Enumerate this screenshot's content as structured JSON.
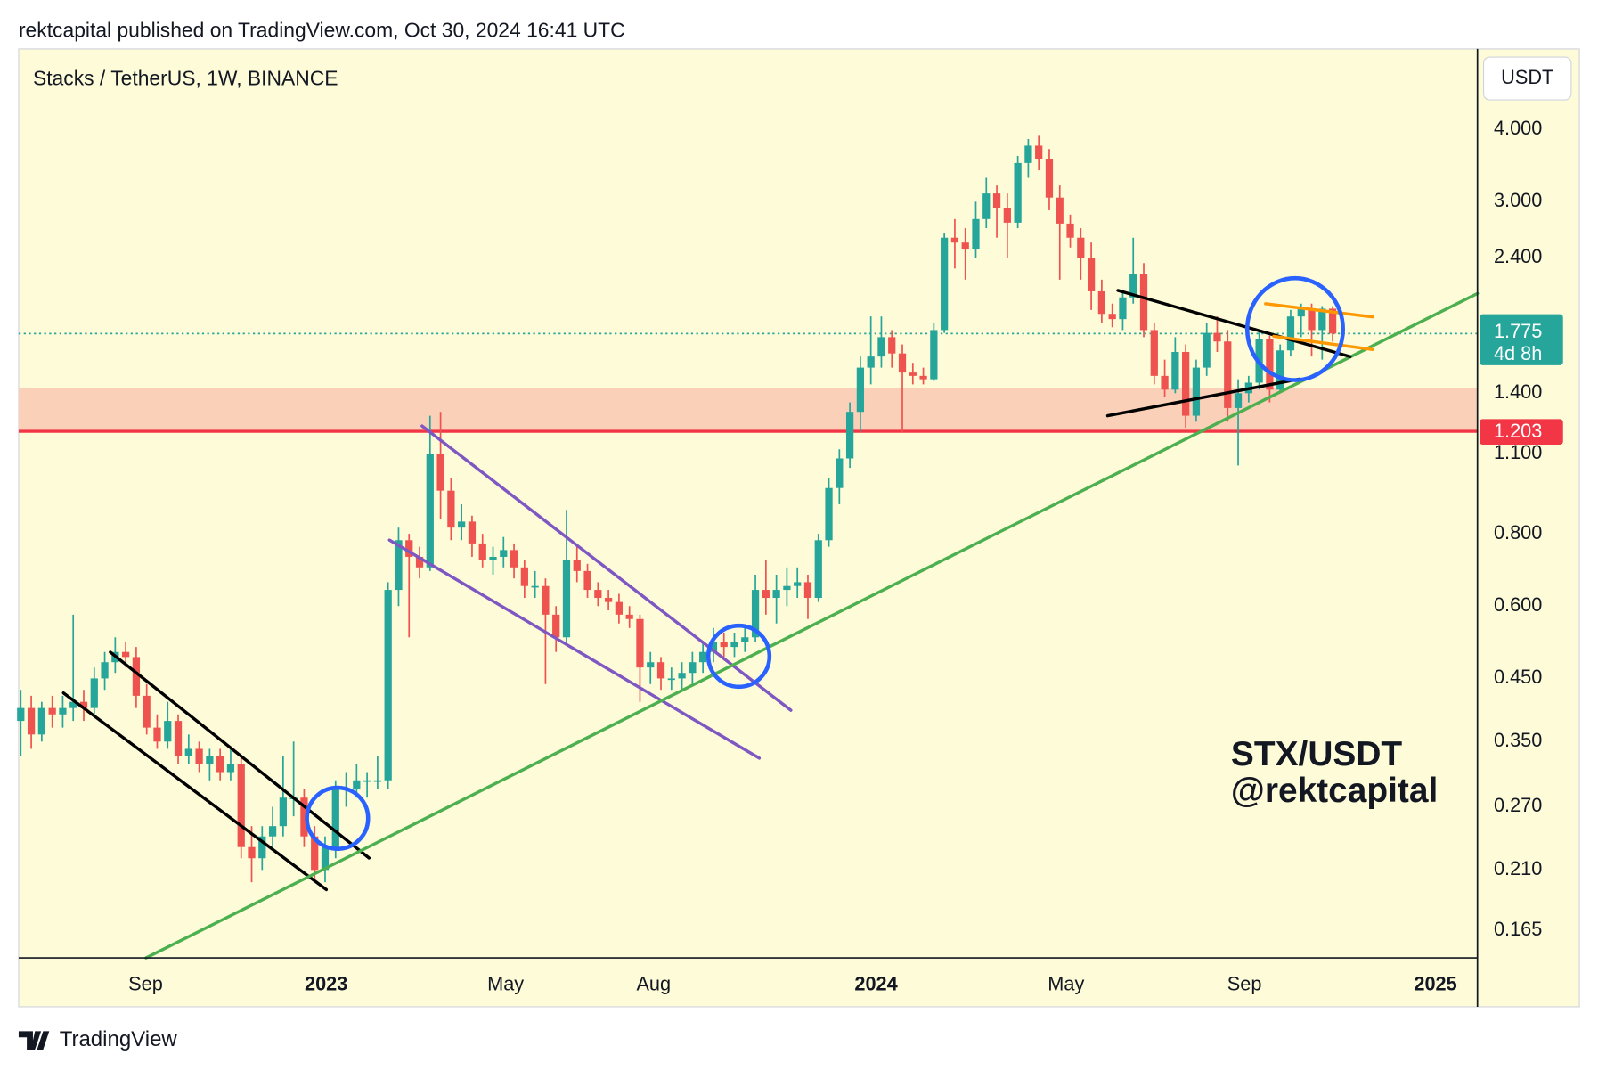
{
  "header": "rektcapital published on TradingView.com, Oct 30, 2024 16:41 UTC",
  "footer": "TradingView",
  "chart_data": {
    "type": "candlestick",
    "title": "Stacks / TetherUS, 1W, BINANCE",
    "currency": "USDT",
    "log_scale": true,
    "grid": false,
    "up_color": "#26a69a",
    "down_color": "#ef5350",
    "ylim": [
      0.148,
      5.51
    ],
    "yticks": [
      {
        "value": 4,
        "label": "4.000"
      },
      {
        "value": 3,
        "label": "3.000"
      },
      {
        "value": 2.4,
        "label": "2.400"
      },
      {
        "value": 1.4,
        "label": "1.400"
      },
      {
        "value": 1.1,
        "label": "1.100"
      },
      {
        "value": 0.8,
        "label": "0.800"
      },
      {
        "value": 0.6,
        "label": "0.600"
      },
      {
        "value": 0.45,
        "label": "0.450"
      },
      {
        "value": 0.35,
        "label": "0.350"
      },
      {
        "value": 0.27,
        "label": "0.270"
      },
      {
        "value": 0.21,
        "label": "0.210"
      },
      {
        "value": 0.165,
        "label": "0.165"
      }
    ],
    "xlim": [
      -0.2,
      138.8
    ],
    "xticks": [
      {
        "value": 11.9,
        "label": "Sep"
      },
      {
        "value": 29.1,
        "label": "2023"
      },
      {
        "value": 46.2,
        "label": "May"
      },
      {
        "value": 60.3,
        "label": "Aug"
      },
      {
        "value": 81.5,
        "label": "2024"
      },
      {
        "value": 99.6,
        "label": "May"
      },
      {
        "value": 116.6,
        "label": "Sep"
      },
      {
        "value": 134.8,
        "label": "2025"
      }
    ],
    "last_price": {
      "value": 1.775,
      "label": "1.775",
      "color": "#26a69a"
    },
    "countdown": "4d 8h",
    "support_level": {
      "value": 1.203,
      "label": "1.203",
      "color": "#f23645"
    },
    "zone": [
      1.203,
      1.43
    ],
    "zone_color": "#fad0b8",
    "annotation": [
      "STX/USDT",
      "@rektcapital"
    ],
    "candles": [
      [
        0.38,
        0.43,
        0.33,
        0.4
      ],
      [
        0.4,
        0.42,
        0.34,
        0.36
      ],
      [
        0.36,
        0.41,
        0.35,
        0.4
      ],
      [
        0.4,
        0.42,
        0.37,
        0.39
      ],
      [
        0.39,
        0.42,
        0.37,
        0.4
      ],
      [
        0.4,
        0.58,
        0.38,
        0.41
      ],
      [
        0.41,
        0.43,
        0.38,
        0.4
      ],
      [
        0.4,
        0.47,
        0.39,
        0.45
      ],
      [
        0.45,
        0.5,
        0.43,
        0.48
      ],
      [
        0.48,
        0.53,
        0.46,
        0.5
      ],
      [
        0.5,
        0.52,
        0.47,
        0.49
      ],
      [
        0.49,
        0.51,
        0.4,
        0.42
      ],
      [
        0.42,
        0.44,
        0.36,
        0.37
      ],
      [
        0.37,
        0.39,
        0.34,
        0.35
      ],
      [
        0.35,
        0.41,
        0.34,
        0.38
      ],
      [
        0.38,
        0.39,
        0.32,
        0.33
      ],
      [
        0.33,
        0.36,
        0.32,
        0.34
      ],
      [
        0.34,
        0.35,
        0.31,
        0.32
      ],
      [
        0.32,
        0.34,
        0.3,
        0.33
      ],
      [
        0.33,
        0.34,
        0.3,
        0.31
      ],
      [
        0.31,
        0.34,
        0.3,
        0.32
      ],
      [
        0.32,
        0.33,
        0.22,
        0.23
      ],
      [
        0.23,
        0.25,
        0.2,
        0.22
      ],
      [
        0.22,
        0.25,
        0.21,
        0.24
      ],
      [
        0.24,
        0.27,
        0.23,
        0.25
      ],
      [
        0.25,
        0.33,
        0.24,
        0.28
      ],
      [
        0.28,
        0.35,
        0.26,
        0.28
      ],
      [
        0.28,
        0.29,
        0.23,
        0.24
      ],
      [
        0.24,
        0.25,
        0.2,
        0.21
      ],
      [
        0.21,
        0.24,
        0.2,
        0.23
      ],
      [
        0.23,
        0.3,
        0.22,
        0.29
      ],
      [
        0.29,
        0.31,
        0.27,
        0.29
      ],
      [
        0.29,
        0.32,
        0.28,
        0.3
      ],
      [
        0.3,
        0.31,
        0.28,
        0.3
      ],
      [
        0.3,
        0.33,
        0.29,
        0.3
      ],
      [
        0.3,
        0.66,
        0.29,
        0.64
      ],
      [
        0.64,
        0.82,
        0.6,
        0.78
      ],
      [
        0.78,
        0.8,
        0.53,
        0.73
      ],
      [
        0.73,
        0.76,
        0.67,
        0.7
      ],
      [
        0.7,
        1.28,
        0.69,
        1.1
      ],
      [
        1.1,
        1.3,
        0.85,
        0.95
      ],
      [
        0.95,
        1.0,
        0.78,
        0.82
      ],
      [
        0.82,
        0.9,
        0.78,
        0.84
      ],
      [
        0.84,
        0.86,
        0.73,
        0.77
      ],
      [
        0.77,
        0.8,
        0.7,
        0.72
      ],
      [
        0.72,
        0.76,
        0.68,
        0.73
      ],
      [
        0.73,
        0.79,
        0.7,
        0.75
      ],
      [
        0.75,
        0.77,
        0.67,
        0.7
      ],
      [
        0.7,
        0.72,
        0.62,
        0.65
      ],
      [
        0.65,
        0.69,
        0.62,
        0.65
      ],
      [
        0.65,
        0.67,
        0.44,
        0.58
      ],
      [
        0.58,
        0.6,
        0.5,
        0.53
      ],
      [
        0.53,
        0.88,
        0.52,
        0.72
      ],
      [
        0.72,
        0.76,
        0.66,
        0.69
      ],
      [
        0.69,
        0.71,
        0.62,
        0.64
      ],
      [
        0.64,
        0.66,
        0.6,
        0.62
      ],
      [
        0.62,
        0.64,
        0.59,
        0.61
      ],
      [
        0.61,
        0.63,
        0.56,
        0.58
      ],
      [
        0.58,
        0.6,
        0.55,
        0.57
      ],
      [
        0.57,
        0.58,
        0.41,
        0.47
      ],
      [
        0.47,
        0.5,
        0.44,
        0.48
      ],
      [
        0.48,
        0.49,
        0.43,
        0.45
      ],
      [
        0.45,
        0.47,
        0.43,
        0.45
      ],
      [
        0.45,
        0.48,
        0.43,
        0.46
      ],
      [
        0.46,
        0.5,
        0.44,
        0.48
      ],
      [
        0.48,
        0.52,
        0.46,
        0.5
      ],
      [
        0.5,
        0.55,
        0.48,
        0.52
      ],
      [
        0.52,
        0.54,
        0.49,
        0.51
      ],
      [
        0.51,
        0.54,
        0.49,
        0.52
      ],
      [
        0.52,
        0.55,
        0.5,
        0.53
      ],
      [
        0.53,
        0.68,
        0.52,
        0.64
      ],
      [
        0.64,
        0.72,
        0.58,
        0.62
      ],
      [
        0.62,
        0.68,
        0.56,
        0.64
      ],
      [
        0.64,
        0.7,
        0.6,
        0.65
      ],
      [
        0.65,
        0.7,
        0.62,
        0.66
      ],
      [
        0.66,
        0.68,
        0.57,
        0.62
      ],
      [
        0.62,
        0.8,
        0.61,
        0.78
      ],
      [
        0.78,
        1.0,
        0.76,
        0.96
      ],
      [
        0.96,
        1.12,
        0.9,
        1.08
      ],
      [
        1.08,
        1.35,
        1.04,
        1.3
      ],
      [
        1.3,
        1.62,
        1.2,
        1.55
      ],
      [
        1.55,
        1.9,
        1.45,
        1.62
      ],
      [
        1.62,
        1.9,
        1.55,
        1.75
      ],
      [
        1.75,
        1.8,
        1.55,
        1.64
      ],
      [
        1.64,
        1.7,
        1.2,
        1.52
      ],
      [
        1.52,
        1.58,
        1.45,
        1.5
      ],
      [
        1.5,
        1.55,
        1.45,
        1.48
      ],
      [
        1.48,
        1.85,
        1.47,
        1.8
      ],
      [
        1.8,
        2.65,
        1.78,
        2.6
      ],
      [
        2.6,
        2.8,
        2.3,
        2.55
      ],
      [
        2.55,
        2.7,
        2.2,
        2.48
      ],
      [
        2.48,
        3.0,
        2.4,
        2.8
      ],
      [
        2.8,
        3.3,
        2.7,
        3.1
      ],
      [
        3.1,
        3.2,
        2.6,
        2.92
      ],
      [
        2.92,
        3.1,
        2.4,
        2.76
      ],
      [
        2.76,
        3.6,
        2.7,
        3.5
      ],
      [
        3.5,
        3.85,
        3.3,
        3.75
      ],
      [
        3.75,
        3.9,
        3.4,
        3.55
      ],
      [
        3.55,
        3.7,
        2.9,
        3.05
      ],
      [
        3.05,
        3.2,
        2.2,
        2.75
      ],
      [
        2.75,
        2.85,
        2.5,
        2.6
      ],
      [
        2.6,
        2.7,
        2.2,
        2.4
      ],
      [
        2.4,
        2.55,
        1.95,
        2.1
      ],
      [
        2.1,
        2.2,
        1.85,
        1.92
      ],
      [
        1.92,
        2.0,
        1.82,
        1.88
      ],
      [
        1.88,
        2.1,
        1.8,
        2.05
      ],
      [
        2.05,
        2.6,
        2.0,
        2.25
      ],
      [
        2.25,
        2.35,
        1.75,
        1.8
      ],
      [
        1.8,
        1.85,
        1.45,
        1.5
      ],
      [
        1.5,
        1.6,
        1.38,
        1.42
      ],
      [
        1.42,
        1.75,
        1.4,
        1.65
      ],
      [
        1.65,
        1.7,
        1.22,
        1.28
      ],
      [
        1.28,
        1.6,
        1.25,
        1.55
      ],
      [
        1.55,
        1.85,
        1.5,
        1.78
      ],
      [
        1.78,
        1.9,
        1.65,
        1.72
      ],
      [
        1.72,
        1.8,
        1.25,
        1.32
      ],
      [
        1.32,
        1.48,
        1.05,
        1.4
      ],
      [
        1.4,
        1.5,
        1.35,
        1.46
      ],
      [
        1.46,
        1.8,
        1.42,
        1.74
      ],
      [
        1.74,
        1.76,
        1.35,
        1.42
      ],
      [
        1.42,
        1.7,
        1.4,
        1.66
      ],
      [
        1.66,
        1.95,
        1.62,
        1.9
      ],
      [
        1.9,
        2.0,
        1.75,
        1.96
      ],
      [
        1.96,
        2.0,
        1.62,
        1.8
      ],
      [
        1.8,
        1.98,
        1.6,
        1.96
      ],
      [
        1.96,
        1.98,
        1.72,
        1.775
      ]
    ]
  }
}
